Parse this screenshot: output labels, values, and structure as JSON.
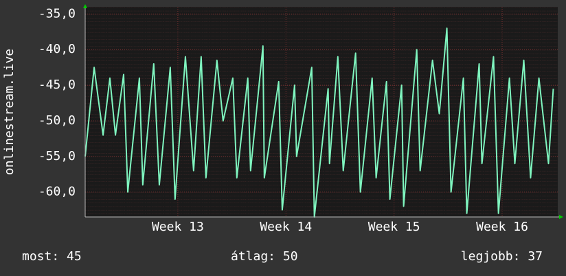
{
  "chart_data": {
    "type": "line",
    "y_label": "onlinestream.live",
    "x": [
      0,
      0.58,
      1.16,
      1.6,
      1.96,
      2.49,
      2.76,
      3.51,
      3.73,
      4.44,
      4.8,
      5.51,
      5.82,
      6.49,
      7.02,
      7.51,
      7.82,
      8.53,
      8.93,
      9.56,
      9.82,
      10.53,
      10.71,
      11.51,
      11.6,
      12.53,
      12.76,
      13.56,
      13.69,
      14.67,
      14.84,
      15.73,
      15.82,
      16.36,
      16.71,
      17.51,
      17.82,
      18.58,
      18.84,
      19.51,
      19.73,
      20.49,
      20.62,
      21.47,
      21.69,
      22.49,
      22.93,
      23.42,
      23.69,
      24.49,
      24.71,
      25.51,
      25.69,
      26.44,
      26.76,
      27.47,
      27.82,
      28.4,
      28.84,
      29.38,
      30,
      30.31
    ],
    "series": [
      {
        "name": "onlinestream.live",
        "color": "#7ff5bf",
        "values": [
          -55,
          -42.5,
          -52,
          -44,
          -52,
          -43.5,
          -60,
          -44,
          -59,
          -42,
          -59,
          -42.5,
          -61,
          -41,
          -57,
          -41,
          -58,
          -41.5,
          -50,
          -44,
          -58,
          -44,
          -57,
          -39.5,
          -58,
          -44.5,
          -62.5,
          -45,
          -55,
          -42.5,
          -63.5,
          -45.5,
          -56,
          -41,
          -57,
          -40.5,
          -60,
          -44,
          -58,
          -44.5,
          -61,
          -45,
          -62,
          -40,
          -57,
          -41.5,
          -49,
          -37,
          -60,
          -44,
          -63,
          -42,
          -56,
          -41,
          -63,
          -44,
          -56,
          -41.5,
          -58,
          -44,
          -56,
          -45.5
        ]
      }
    ],
    "xlim": [
      0,
      30.6
    ],
    "xticks": [
      {
        "value": 6,
        "label": "Week 13"
      },
      {
        "value": 13,
        "label": "Week 14"
      },
      {
        "value": 20,
        "label": "Week 15"
      },
      {
        "value": 27,
        "label": "Week 16"
      }
    ],
    "ylim": [
      -63.5,
      -34
    ],
    "yticks": [
      {
        "value": -60,
        "label": "-60,0"
      },
      {
        "value": -55,
        "label": "-55,0"
      },
      {
        "value": -50,
        "label": "-50,0"
      },
      {
        "value": -45,
        "label": "-45,0"
      },
      {
        "value": -40,
        "label": "-40,0"
      },
      {
        "value": -35,
        "label": "-35,0"
      }
    ],
    "grid": true,
    "footer": {
      "current": "most: 45",
      "average": "átlag: 50",
      "best": "legjobb: 37"
    }
  }
}
